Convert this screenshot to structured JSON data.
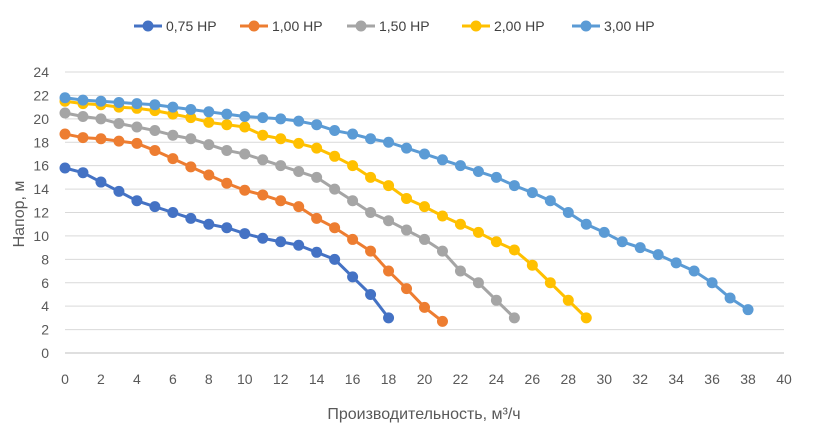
{
  "chart_data": {
    "type": "line",
    "xlabel": "Производительность, м³/ч",
    "ylabel": "Напор, м",
    "xlim": [
      0,
      40
    ],
    "ylim": [
      0,
      24
    ],
    "x_ticks": [
      0,
      2,
      4,
      6,
      8,
      10,
      12,
      14,
      16,
      18,
      20,
      22,
      24,
      26,
      28,
      30,
      32,
      34,
      36,
      38,
      40
    ],
    "y_ticks": [
      0,
      2,
      4,
      6,
      8,
      10,
      12,
      14,
      16,
      18,
      20,
      22,
      24
    ],
    "grid": "horizontal",
    "legend_position": "top",
    "series": [
      {
        "name": "0,75 HP",
        "color": "#4472C4",
        "x": [
          0,
          1,
          2,
          3,
          4,
          5,
          6,
          7,
          8,
          9,
          10,
          11,
          12,
          13,
          14,
          15,
          16,
          17,
          18
        ],
        "y": [
          15.8,
          15.4,
          14.6,
          13.8,
          13.0,
          12.5,
          12.0,
          11.5,
          11.0,
          10.7,
          10.2,
          9.8,
          9.5,
          9.2,
          8.6,
          8.0,
          6.5,
          5.0,
          3.0
        ]
      },
      {
        "name": "1,00 HP",
        "color": "#ED7D31",
        "x": [
          0,
          1,
          2,
          3,
          4,
          5,
          6,
          7,
          8,
          9,
          10,
          11,
          12,
          13,
          14,
          15,
          16,
          17,
          18,
          19,
          20,
          21
        ],
        "y": [
          18.7,
          18.4,
          18.3,
          18.1,
          17.9,
          17.3,
          16.6,
          15.9,
          15.2,
          14.5,
          13.9,
          13.5,
          13.0,
          12.5,
          11.5,
          10.7,
          9.7,
          8.7,
          7.0,
          5.5,
          3.9,
          2.7
        ]
      },
      {
        "name": "1,50 HP",
        "color": "#A5A5A5",
        "x": [
          0,
          1,
          2,
          3,
          4,
          5,
          6,
          7,
          8,
          9,
          10,
          11,
          12,
          13,
          14,
          15,
          16,
          17,
          18,
          19,
          20,
          21,
          22,
          23,
          24,
          25
        ],
        "y": [
          20.5,
          20.2,
          20.0,
          19.6,
          19.3,
          19.0,
          18.6,
          18.3,
          17.8,
          17.3,
          17.0,
          16.5,
          16.0,
          15.5,
          15.0,
          14.0,
          13.0,
          12.0,
          11.3,
          10.5,
          9.7,
          8.7,
          7.0,
          6.0,
          4.5,
          3.0
        ]
      },
      {
        "name": "2,00 HP",
        "color": "#FFC000",
        "x": [
          0,
          1,
          2,
          3,
          4,
          5,
          6,
          7,
          8,
          9,
          10,
          11,
          12,
          13,
          14,
          15,
          16,
          17,
          18,
          19,
          20,
          21,
          22,
          23,
          24,
          25,
          26,
          27,
          28,
          29
        ],
        "y": [
          21.5,
          21.3,
          21.2,
          21.0,
          20.9,
          20.7,
          20.4,
          20.1,
          19.7,
          19.5,
          19.3,
          18.6,
          18.3,
          17.9,
          17.5,
          16.8,
          16.0,
          15.0,
          14.3,
          13.2,
          12.5,
          11.7,
          11.0,
          10.3,
          9.5,
          8.8,
          7.5,
          6.0,
          4.5,
          3.0
        ]
      },
      {
        "name": "3,00 HP",
        "color": "#5B9BD5",
        "x": [
          0,
          1,
          2,
          3,
          4,
          5,
          6,
          7,
          8,
          9,
          10,
          11,
          12,
          13,
          14,
          15,
          16,
          17,
          18,
          19,
          20,
          21,
          22,
          23,
          24,
          25,
          26,
          27,
          28,
          29,
          30,
          31,
          32,
          33,
          34,
          35,
          36,
          37,
          38
        ],
        "y": [
          21.8,
          21.6,
          21.5,
          21.4,
          21.3,
          21.2,
          21.0,
          20.8,
          20.6,
          20.4,
          20.2,
          20.1,
          20.0,
          19.8,
          19.5,
          19.0,
          18.7,
          18.3,
          18.0,
          17.5,
          17.0,
          16.5,
          16.0,
          15.5,
          15.0,
          14.3,
          13.7,
          13.0,
          12.0,
          11.0,
          10.3,
          9.5,
          9.0,
          8.4,
          7.7,
          7.0,
          6.0,
          4.7,
          3.7
        ]
      }
    ]
  }
}
